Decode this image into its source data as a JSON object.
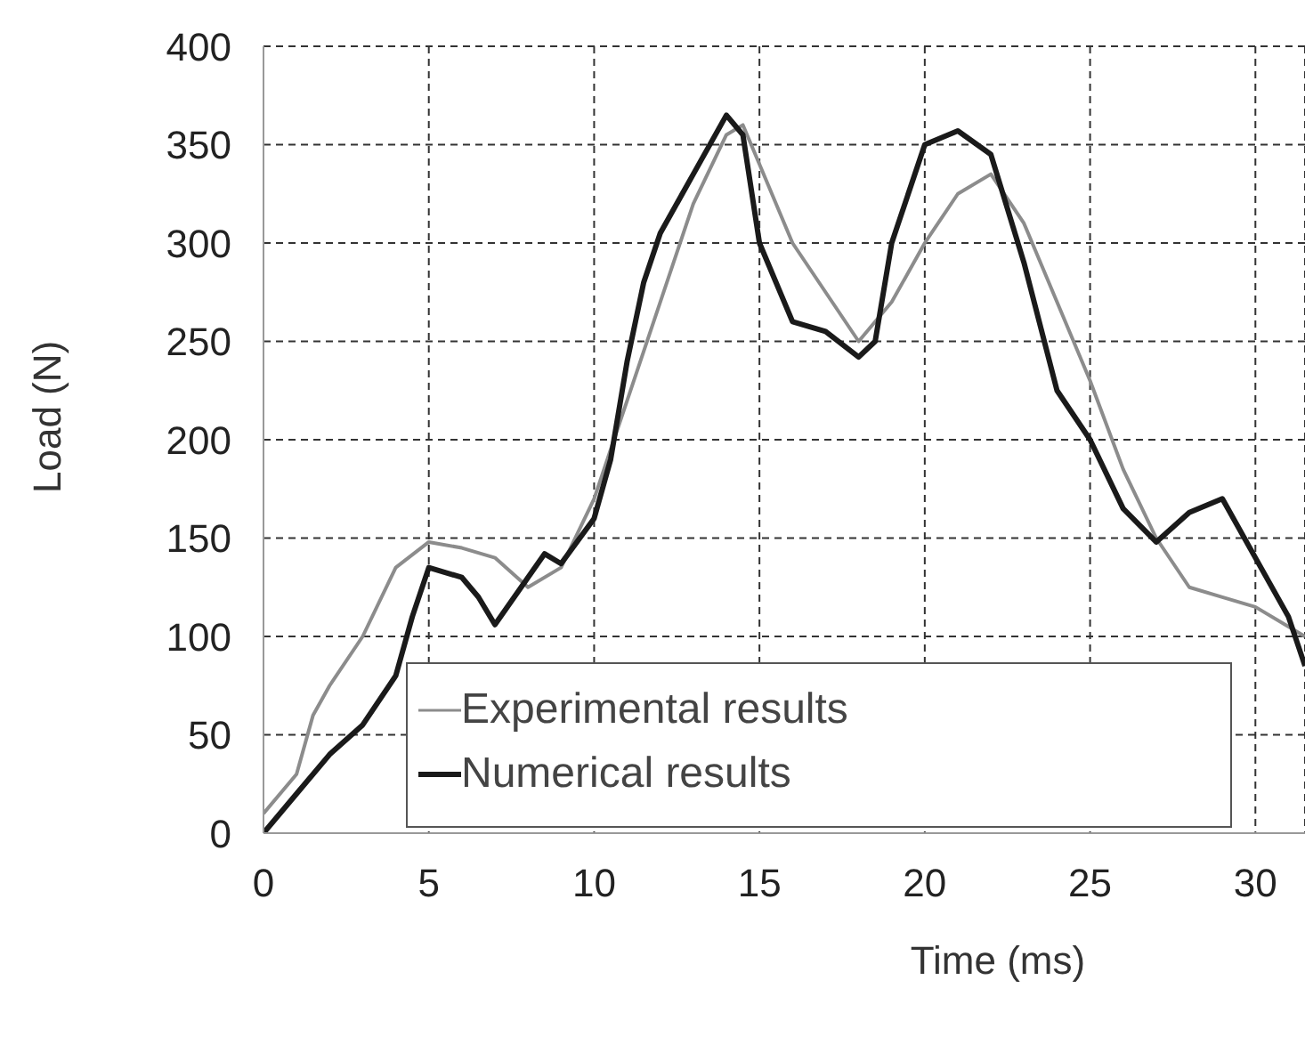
{
  "chart_data": {
    "type": "line",
    "xlabel": "Time (ms)",
    "ylabel": "Load (N)",
    "xlim": [
      0,
      31.5
    ],
    "xticks": [
      0,
      5,
      10,
      15,
      20,
      25,
      30
    ],
    "ylim": [
      0,
      400
    ],
    "yticks": [
      0,
      50,
      100,
      150,
      200,
      250,
      300,
      350,
      400
    ],
    "grid": true,
    "legend": "bottom",
    "marker": "none",
    "line_style": "solid",
    "series": [
      {
        "name": "Experimental results",
        "color": "#8c8c8c",
        "x": [
          0,
          1,
          1.5,
          2,
          3,
          4,
          5,
          6,
          7,
          8,
          9,
          10,
          11,
          12,
          13,
          14,
          14.5,
          15,
          16,
          17,
          18,
          19,
          20,
          21,
          22,
          23,
          24,
          25,
          26,
          27,
          28,
          29,
          30,
          31,
          31.5
        ],
        "values": [
          10,
          30,
          60,
          75,
          100,
          135,
          148,
          145,
          140,
          125,
          135,
          170,
          220,
          270,
          320,
          355,
          360,
          340,
          300,
          275,
          250,
          270,
          300,
          325,
          335,
          310,
          270,
          230,
          185,
          150,
          125,
          120,
          115,
          105,
          100
        ]
      },
      {
        "name": "Numerical results",
        "color": "#1a1a1a",
        "x": [
          0,
          1,
          2,
          3,
          4,
          4.5,
          5,
          6,
          6.5,
          7,
          8,
          8.5,
          9,
          10,
          10.5,
          11,
          11.5,
          12,
          13,
          14,
          14.5,
          15,
          16,
          17,
          18,
          18.5,
          19,
          20,
          21,
          22,
          23,
          24,
          25,
          26,
          27,
          28,
          29,
          30,
          31,
          31.5
        ],
        "values": [
          0,
          20,
          40,
          55,
          80,
          110,
          135,
          130,
          120,
          106,
          130,
          142,
          137,
          160,
          190,
          240,
          280,
          305,
          335,
          365,
          355,
          300,
          260,
          255,
          242,
          250,
          300,
          350,
          357,
          345,
          290,
          225,
          200,
          165,
          148,
          163,
          170,
          140,
          110,
          85
        ]
      }
    ]
  }
}
